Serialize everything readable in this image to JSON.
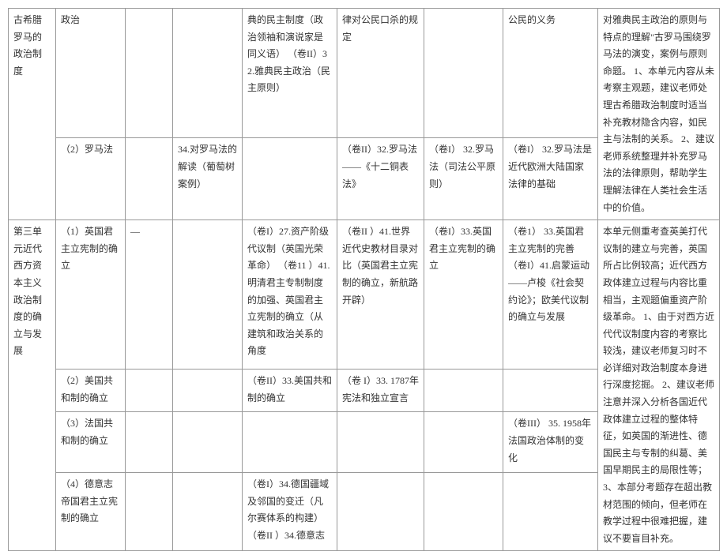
{
  "unitA": {
    "title": "古希腊罗马的政治制度",
    "r1": {
      "c2": "政治",
      "c5": "典的民主制度（政治领袖和演说家是同义语）\n（卷II）32.雅典民主政治（民主原则）",
      "c6": "律对公民口杀的规定",
      "c8": "公民的义务",
      "c9": "对雅典民主政治的原则与特点的理解\"古罗马围绕罗马法的演变，案例与原则命题。\n1、本单元内容从未考察主观题，建议老师处理古希腊政治制度时适当补充教材隐含内容，如民主与法制的关系。\n2、建议老师系统整理并补充罗马法的法律原则，帮助学生理解法律在人类社会生活中的价值。"
    },
    "r2": {
      "c2": "（2）罗马法",
      "c4": "34.对罗马法的解读（葡萄树案例）",
      "c6": "（卷II）32.罗马法——《十二铜表法》",
      "c7": "（卷I） 32.罗马法（司法公平原则）",
      "c8": "（卷I） 32.罗马法是近代欧洲大陆国家法律的基础"
    }
  },
  "unitB": {
    "title": "第三单元近代西方资本主义政治制度的确立与发展",
    "r1": {
      "c2": "（1）英国君主立宪制的确立",
      "c3": "—",
      "c5": "（卷I）27.资产阶级代议制（英国光荣革命）\n（卷11\n）41.明清君主专制制度的加强、英国君主立宪制的确立（从建筑和政治关系的角度",
      "c6": "（卷II\n）41.世界近代史教材目录对比（英国君主立宪制的确立，新航路开辟）",
      "c7": "（卷I）33.英国君主立宪制的确立",
      "c8": "（卷1）\n33.英国君主立宪制的完善\n（卷I）41.启蒙运动——卢梭《社会契约论》；欧美代议制的确立与发展",
      "c9": "本单元侧重考查英美打代议制的建立与完善，英国所占比例较高；近代西方政体建立过程与内容比重相当，主观题偏重资产阶级革命。\n1、由于对西方近代代议制度内容的考察比较浅，建议老师复习时不必详细对政治制度本身进行深度挖掘。\n2、建议老师注意并深入分析各国近代政体建立过程的整体特征，如英国的渐进性、德国民主与专制的纠葛、美国早期民主的局限性等；\n3、本部分考题存在超出教材范围的倾向，但老师在教学过程中很难把握，建议不要盲目补充。"
    },
    "r2": {
      "c2": "（2）美国共和制的确立",
      "c5": "（卷II）33.美国共和制的确立",
      "c6": "（卷 I）33. 1787年 宪法和独立宣言"
    },
    "r3": {
      "c2": "（3）法国共和制的确立",
      "c8": "（卷III） 35. 1958年法国政治体制的变化"
    },
    "r4": {
      "c2": "（4）德意志帝国君主立宪制的确立",
      "c5": "（卷I）34.德国疆域及邻国的变迁（凡尔赛体系的构建）\n（卷II        ）34.德意志"
    }
  }
}
